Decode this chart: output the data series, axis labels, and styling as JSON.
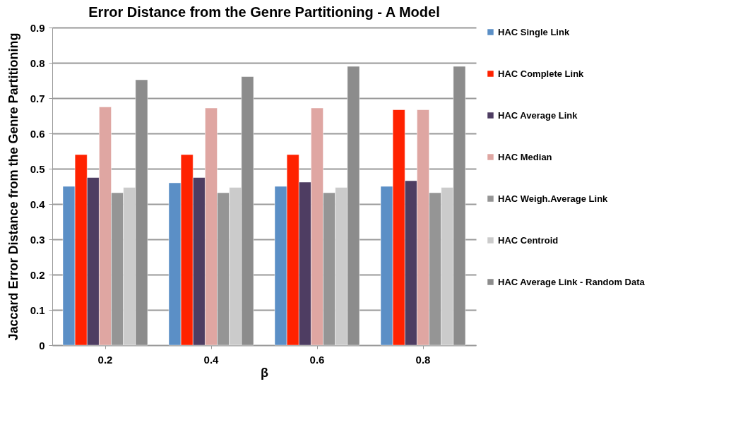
{
  "chart_data": {
    "type": "bar",
    "title": "Error Distance from the Genre Partitioning  - A Model",
    "xlabel": "β",
    "ylabel": "Jaccard Error Distance from the Genre Partitioning",
    "categories": [
      "0.2",
      "0.4",
      "0.6",
      "0.8"
    ],
    "series": [
      {
        "name": "HAC Single Link",
        "color": "#5b8fc6",
        "values": [
          0.45,
          0.46,
          0.45,
          0.45
        ]
      },
      {
        "name": "HAC Complete Link",
        "color": "#ff2200",
        "values": [
          0.54,
          0.54,
          0.54,
          0.667
        ]
      },
      {
        "name": "HAC Average Link",
        "color": "#4e3d62",
        "values": [
          0.475,
          0.475,
          0.462,
          0.466
        ]
      },
      {
        "name": "HAC Median",
        "color": "#dfa6a2",
        "values": [
          0.675,
          0.672,
          0.672,
          0.667
        ]
      },
      {
        "name": "HAC Weigh.Average Link",
        "color": "#959595",
        "values": [
          0.432,
          0.432,
          0.432,
          0.432
        ]
      },
      {
        "name": "HAC Centroid",
        "color": "#cbcbcb",
        "values": [
          0.447,
          0.447,
          0.447,
          0.447
        ]
      },
      {
        "name": "HAC Average Link - Random Data",
        "color": "#8c8c8c",
        "values": [
          0.752,
          0.761,
          0.79,
          0.79
        ]
      }
    ],
    "ylim": [
      0,
      0.9
    ],
    "yticks": [
      0,
      0.1,
      0.2,
      0.3,
      0.4,
      0.5,
      0.6,
      0.7,
      0.8,
      0.9
    ],
    "grid": "y",
    "legend": "right"
  }
}
